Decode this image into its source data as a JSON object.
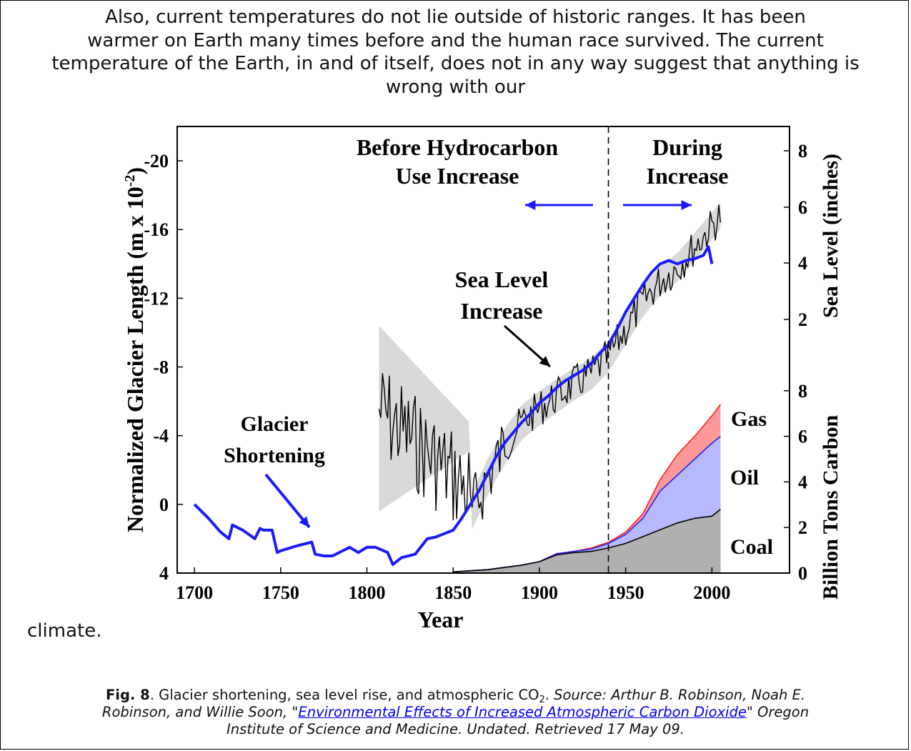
{
  "paragraph": {
    "line1": "Also, current temperatures do not lie outside of historic ranges.  It has been",
    "line2": "warmer on Earth many times before and the human race survived.  The current",
    "line3": "temperature of the Earth, in and of itself, does not in any way suggest that anything is",
    "line4": "wrong with our",
    "tail": "climate."
  },
  "caption": {
    "fig_label": "Fig. 8",
    "text_before_sub": ". Glacier shortening, sea level rise, and atmospheric CO",
    "sub": "2",
    "text_after_sub": ". ",
    "source_prefix": "Source: Arthur B. Robinson, Noah E.",
    "source_line2_prefix": "Robinson, and Willie Soon, \"",
    "link_text": "Environmental Effects of Increased Atmospheric Carbon Dioxide",
    "source_line2_suffix": "\" Oregon",
    "source_line3": "Institute of Science and Medicine. Undated. Retrieved 17 May 09."
  },
  "colors": {
    "glacier": "#1a1aff",
    "sea_level": "#000000",
    "band": "#d9d9d9",
    "gas": "#ff9999",
    "gas_line": "#ff2020",
    "oil": "#b8b8ff",
    "oil_line": "#2020ff",
    "coal": "#b0b0b0"
  },
  "chart_data": {
    "type": "line",
    "xlabel": "Year",
    "ylabel_left": "Normalized Glacier Length (m x 10",
    "ylabel_left_exp": "-2",
    "ylabel_left_close": ")",
    "ylabel_right_top": "Sea Level (inches)",
    "ylabel_right_bottom": "Billion Tons Carbon",
    "xlim": [
      1690,
      2045
    ],
    "x_ticks": [
      "1700",
      "1750",
      "1800",
      "1850",
      "1900",
      "1950",
      "2000"
    ],
    "y_left_ticks": [
      "-20",
      "-16",
      "-12",
      "-8",
      "-4",
      "0",
      "4"
    ],
    "y_left_range": [
      -22,
      4
    ],
    "y_right_top_ticks": [
      "2",
      "4",
      "6",
      "8"
    ],
    "y_right_bottom_ticks": [
      "0",
      "2",
      "4",
      "6",
      "8"
    ],
    "annotations": {
      "before_1": "Before Hydrocarbon",
      "before_2": "Use Increase",
      "during_1": "During",
      "during_2": "Increase",
      "sea_1": "Sea Level",
      "sea_2": "Increase",
      "glacier_1": "Glacier",
      "glacier_2": "Shortening",
      "gas": "Gas",
      "oil": "Oil",
      "coal": "Coal"
    },
    "divider_year": 1940,
    "glacier_series": {
      "name": "Glacier Shortening",
      "x": [
        1700,
        1708,
        1715,
        1720,
        1722,
        1728,
        1735,
        1738,
        1740,
        1745,
        1748,
        1750,
        1760,
        1768,
        1770,
        1775,
        1780,
        1790,
        1795,
        1800,
        1805,
        1812,
        1815,
        1820,
        1828,
        1835,
        1840,
        1845,
        1850,
        1855,
        1860,
        1865,
        1870,
        1875,
        1880,
        1885,
        1890,
        1895,
        1900,
        1905,
        1910,
        1915,
        1920,
        1925,
        1930,
        1935,
        1940,
        1945,
        1950,
        1955,
        1960,
        1965,
        1970,
        1975,
        1980,
        1985,
        1990,
        1995,
        1998,
        2000
      ],
      "y": [
        0,
        0.8,
        1.6,
        2,
        1.2,
        1.5,
        2,
        1.4,
        1.5,
        1.5,
        2.8,
        2.7,
        2.4,
        2.2,
        2.9,
        3,
        3,
        2.5,
        2.8,
        2.5,
        2.5,
        2.8,
        3.5,
        3.1,
        2.9,
        2.0,
        1.9,
        1.7,
        1.5,
        0.8,
        0,
        -0.8,
        -1.8,
        -2.8,
        -3.6,
        -4.2,
        -4.8,
        -5.3,
        -5.9,
        -6.3,
        -6.8,
        -7.2,
        -7.5,
        -7.8,
        -8.2,
        -8.8,
        -9.3,
        -10.2,
        -11.2,
        -12.0,
        -12.8,
        -13.5,
        -14.0,
        -14.2,
        -14.0,
        -14.2,
        -14.3,
        -14.5,
        -15,
        -14
      ]
    },
    "sea_level_series": {
      "name": "Sea Level Increase",
      "x_start": 1807,
      "x_end": 2005,
      "description_free": true
    },
    "carbon_series": [
      {
        "name": "Coal",
        "x": [
          1850,
          1870,
          1890,
          1900,
          1910,
          1920,
          1930,
          1940,
          1950,
          1960,
          1970,
          1980,
          1990,
          2000,
          2005
        ],
        "y": [
          0.05,
          0.15,
          0.35,
          0.5,
          0.8,
          0.9,
          0.95,
          1.1,
          1.3,
          1.6,
          1.9,
          2.2,
          2.4,
          2.5,
          2.8
        ]
      },
      {
        "name": "Oil",
        "x": [
          1850,
          1870,
          1890,
          1900,
          1910,
          1920,
          1930,
          1940,
          1950,
          1960,
          1970,
          1980,
          1990,
          2000,
          2005
        ],
        "y": [
          0.05,
          0.15,
          0.35,
          0.5,
          0.85,
          0.95,
          1.05,
          1.3,
          1.7,
          2.4,
          3.6,
          4.3,
          5.0,
          5.7,
          6.0
        ]
      },
      {
        "name": "Gas",
        "x": [
          1850,
          1870,
          1890,
          1900,
          1910,
          1920,
          1930,
          1940,
          1950,
          1960,
          1970,
          1980,
          1990,
          2000,
          2005
        ],
        "y": [
          0.05,
          0.15,
          0.35,
          0.5,
          0.85,
          0.95,
          1.1,
          1.35,
          1.8,
          2.6,
          4.1,
          5.2,
          6.0,
          6.9,
          7.4
        ]
      }
    ]
  }
}
